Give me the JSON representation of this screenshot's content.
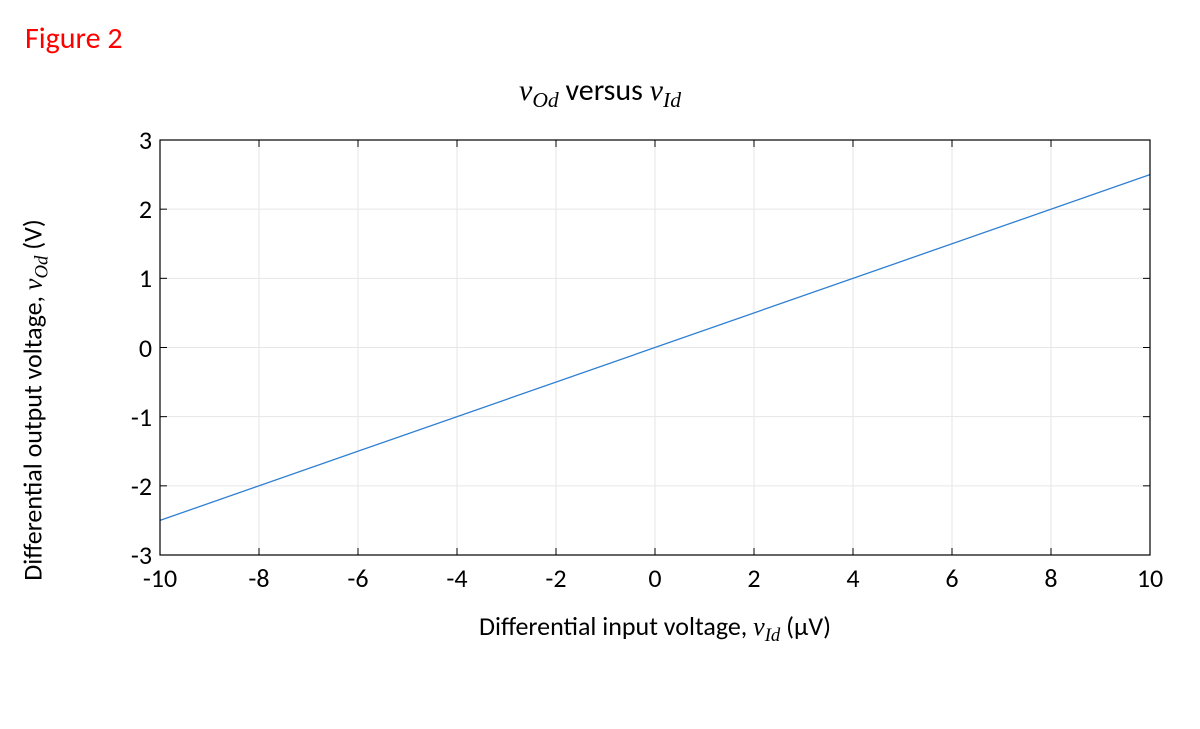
{
  "figure_label": "Figure 2",
  "figure_label_color": "#ff0000",
  "figure_label_fontsize": 30,
  "chart": {
    "type": "line",
    "title_parts": {
      "v1": "v",
      "sub1": "Od",
      "mid": "  versus  ",
      "v2": "v",
      "sub2": "Id"
    },
    "title_fontsize": 30,
    "xlabel_parts": {
      "pre": "Differential input voltage, ",
      "v": "v",
      "sub": "Id",
      "unit": "  (μV)"
    },
    "ylabel_parts": {
      "pre": "Differential output voltage, ",
      "v": "v",
      "sub": "Od",
      "unit": "  (V)"
    },
    "label_fontsize": 26,
    "tick_fontsize": 26,
    "xlim": [
      -10,
      10
    ],
    "ylim": [
      -3,
      3
    ],
    "xticks": [
      -10,
      -8,
      -6,
      -4,
      -2,
      0,
      2,
      4,
      6,
      8,
      10
    ],
    "yticks": [
      -3,
      -2,
      -1,
      0,
      1,
      2,
      3
    ],
    "grid": true,
    "grid_color": "#e6e6e6",
    "grid_width": 1,
    "axis_color": "#000000",
    "axis_width": 1.2,
    "background_color": "#ffffff",
    "line": {
      "x": [
        -10,
        10
      ],
      "y": [
        -2.5,
        2.5
      ],
      "color": "#2f7fd2",
      "width": 1.3
    },
    "tick_length": 7,
    "tick_color": "#000000"
  }
}
